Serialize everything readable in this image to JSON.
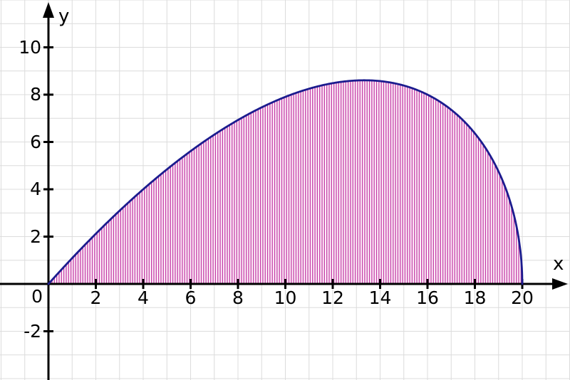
{
  "chart_data": {
    "type": "area",
    "title": "",
    "description": "Region between the curve and the x-axis shaded with fine vertical hatch lines",
    "x_axis": {
      "label": "x",
      "min": -2,
      "max": 22,
      "grid_spacing": 1,
      "tick_step": 2,
      "ticks": [
        2,
        4,
        6,
        8,
        10,
        12,
        14,
        16,
        18,
        20
      ]
    },
    "y_axis": {
      "label": "y",
      "min": -4,
      "max": 12,
      "grid_spacing": 1,
      "tick_step": 2,
      "ticks": [
        -2,
        2,
        4,
        6,
        8,
        10
      ]
    },
    "origin_label": "0",
    "grid": {
      "show": true,
      "color": "#dcdcdc",
      "line_width": 1
    },
    "axis": {
      "color": "#000000",
      "line_width": 3,
      "tick_length": 14,
      "tick_width": 3
    },
    "curve": {
      "color": "#1b1b8e",
      "line_width": 2.8,
      "formula_js": "(x/4)*Math.sqrt(20-x)",
      "domain": [
        0,
        20
      ],
      "max_point": [
        13.33,
        8.61
      ],
      "points": [
        [
          0,
          0
        ],
        [
          1,
          1.09
        ],
        [
          2,
          2.121
        ],
        [
          3,
          3.092
        ],
        [
          4,
          4.0
        ],
        [
          5,
          4.841
        ],
        [
          6,
          5.612
        ],
        [
          7,
          6.31
        ],
        [
          8,
          6.928
        ],
        [
          9,
          7.462
        ],
        [
          10,
          7.906
        ],
        [
          11,
          8.25
        ],
        [
          12,
          8.485
        ],
        [
          13,
          8.6
        ],
        [
          14,
          8.573
        ],
        [
          15,
          8.385
        ],
        [
          16,
          8.0
        ],
        [
          17,
          7.361
        ],
        [
          18,
          6.364
        ],
        [
          19,
          4.75
        ],
        [
          19.5,
          3.448
        ],
        [
          20,
          0
        ]
      ]
    },
    "hatch": {
      "color": "#c43da8",
      "line_width": 1.3,
      "step": 0.1,
      "x_start": 0.05,
      "x_end": 19.95,
      "region_fill": "#fdf0f8"
    }
  }
}
